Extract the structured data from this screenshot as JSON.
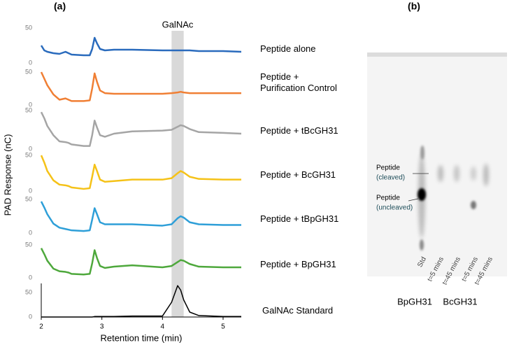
{
  "panel_a": {
    "label": "(a)",
    "ylabel": "PAD Response (nC)",
    "xlabel": "Retention time (min)",
    "xlim": [
      2,
      5.3
    ],
    "xticks": [
      2,
      3,
      4,
      5
    ],
    "annotation": "GalNAc",
    "highlight": [
      4.15,
      4.35
    ]
  },
  "chart_data": [
    {
      "type": "line",
      "x": [
        2.0,
        2.05,
        2.1,
        2.2,
        2.3,
        2.4,
        2.45,
        2.5,
        2.7,
        2.8,
        2.84,
        2.88,
        2.92,
        2.97,
        3.05,
        3.2,
        3.5,
        4.0,
        4.15,
        4.25,
        4.3,
        4.35,
        4.45,
        4.6,
        5.0,
        5.3
      ],
      "ylim": [
        0,
        55
      ],
      "yticks": [
        0,
        50
      ],
      "series": [
        {
          "name": "Peptide alone",
          "color": "#2a6bbd",
          "values": [
            25,
            18,
            16,
            14,
            13,
            16,
            14,
            12,
            11,
            11,
            20,
            36,
            28,
            20,
            18,
            19,
            19,
            18,
            18,
            18,
            18,
            18,
            18,
            17,
            17,
            16
          ]
        }
      ]
    },
    {
      "type": "line",
      "x": [
        2.0,
        2.05,
        2.1,
        2.2,
        2.3,
        2.4,
        2.45,
        2.5,
        2.7,
        2.8,
        2.84,
        2.88,
        2.92,
        2.97,
        3.05,
        3.2,
        3.5,
        4.0,
        4.15,
        4.25,
        4.3,
        4.35,
        4.45,
        4.6,
        5.0,
        5.3
      ],
      "ylim": [
        0,
        55
      ],
      "yticks": [
        0,
        50
      ],
      "series": [
        {
          "name": "Peptide +\nPurification Control",
          "color": "#f07f34",
          "values": [
            50,
            40,
            30,
            16,
            8,
            10,
            8,
            6,
            6,
            7,
            25,
            48,
            35,
            22,
            18,
            17,
            17,
            17,
            18,
            19,
            20,
            19,
            18,
            18,
            18,
            18
          ]
        }
      ]
    },
    {
      "type": "line",
      "x": [
        2.0,
        2.05,
        2.1,
        2.2,
        2.3,
        2.4,
        2.45,
        2.5,
        2.7,
        2.8,
        2.84,
        2.88,
        2.92,
        2.97,
        3.05,
        3.2,
        3.5,
        4.0,
        4.15,
        4.25,
        4.3,
        4.35,
        4.45,
        4.6,
        5.0,
        5.3
      ],
      "ylim": [
        0,
        55
      ],
      "yticks": [
        0,
        50
      ],
      "series": [
        {
          "name": "Peptide + tBcGH31",
          "color": "#a5a5a5",
          "values": [
            48,
            40,
            30,
            18,
            10,
            9,
            8,
            6,
            4,
            4,
            18,
            37,
            28,
            18,
            16,
            20,
            23,
            24,
            25,
            29,
            31,
            30,
            26,
            22,
            21,
            20
          ]
        }
      ]
    },
    {
      "type": "line",
      "x": [
        2.0,
        2.05,
        2.1,
        2.2,
        2.3,
        2.4,
        2.45,
        2.5,
        2.7,
        2.8,
        2.84,
        2.88,
        2.92,
        2.97,
        3.05,
        3.2,
        3.5,
        4.0,
        4.15,
        4.25,
        4.3,
        4.35,
        4.45,
        4.6,
        5.0,
        5.3
      ],
      "ylim": [
        0,
        55
      ],
      "yticks": [
        0,
        50
      ],
      "series": [
        {
          "name": "Peptide + BcGH31",
          "color": "#f5c218",
          "values": [
            50,
            40,
            28,
            15,
            9,
            8,
            7,
            5,
            3,
            4,
            20,
            37,
            28,
            16,
            13,
            14,
            16,
            16,
            18,
            25,
            28,
            26,
            20,
            17,
            16,
            16
          ]
        }
      ]
    },
    {
      "type": "line",
      "x": [
        2.0,
        2.05,
        2.1,
        2.2,
        2.3,
        2.4,
        2.45,
        2.5,
        2.7,
        2.8,
        2.84,
        2.88,
        2.92,
        2.97,
        3.05,
        3.2,
        3.5,
        4.0,
        4.15,
        4.25,
        4.3,
        4.35,
        4.45,
        4.6,
        5.0,
        5.3
      ],
      "ylim": [
        0,
        55
      ],
      "yticks": [
        0,
        50
      ],
      "series": [
        {
          "name": "Peptide + tBpGH31",
          "color": "#2e9fd8",
          "values": [
            47,
            38,
            28,
            14,
            8,
            6,
            5,
            4,
            3,
            4,
            20,
            37,
            28,
            16,
            13,
            13,
            13,
            11,
            13,
            22,
            25,
            23,
            16,
            13,
            12,
            12
          ]
        }
      ]
    },
    {
      "type": "line",
      "x": [
        2.0,
        2.05,
        2.1,
        2.2,
        2.3,
        2.4,
        2.45,
        2.5,
        2.7,
        2.8,
        2.84,
        2.88,
        2.92,
        2.97,
        3.05,
        3.2,
        3.5,
        4.0,
        4.15,
        4.25,
        4.3,
        4.35,
        4.45,
        4.6,
        5.0,
        5.3
      ],
      "ylim": [
        0,
        55
      ],
      "yticks": [
        0,
        50
      ],
      "series": [
        {
          "name": "Peptide + BpGH31",
          "color": "#4ea83c",
          "values": [
            45,
            36,
            26,
            14,
            10,
            9,
            8,
            6,
            5,
            6,
            22,
            42,
            30,
            18,
            15,
            17,
            19,
            16,
            18,
            24,
            27,
            26,
            21,
            17,
            16,
            16
          ]
        }
      ]
    },
    {
      "type": "line",
      "x": [
        2.0,
        2.05,
        2.1,
        2.2,
        2.3,
        2.4,
        2.45,
        2.5,
        2.7,
        2.8,
        2.84,
        2.88,
        2.92,
        2.97,
        3.05,
        3.2,
        3.5,
        4.0,
        4.15,
        4.25,
        4.3,
        4.35,
        4.45,
        4.6,
        5.0,
        5.3
      ],
      "ylim": [
        0,
        70
      ],
      "yticks": [
        0,
        50
      ],
      "series": [
        {
          "name": "GalNAc Standard",
          "color": "#000000",
          "values": [
            0,
            0,
            0,
            0,
            0,
            0,
            0,
            0,
            0,
            0,
            0,
            1,
            1,
            1,
            1,
            1,
            2,
            2,
            30,
            64,
            55,
            35,
            10,
            3,
            1,
            1
          ]
        }
      ]
    }
  ],
  "panel_b": {
    "label": "(b)",
    "markers": [
      {
        "name": "Peptide",
        "state": "(cleaved)"
      },
      {
        "name": "Peptide",
        "state": "(uncleaved)"
      }
    ],
    "lanes": [
      "Std",
      "t=5 mins",
      "t=45 mins",
      "t=5 mins",
      "t=45 mins"
    ],
    "groups": [
      "BpGH31",
      "BcGH31"
    ]
  }
}
